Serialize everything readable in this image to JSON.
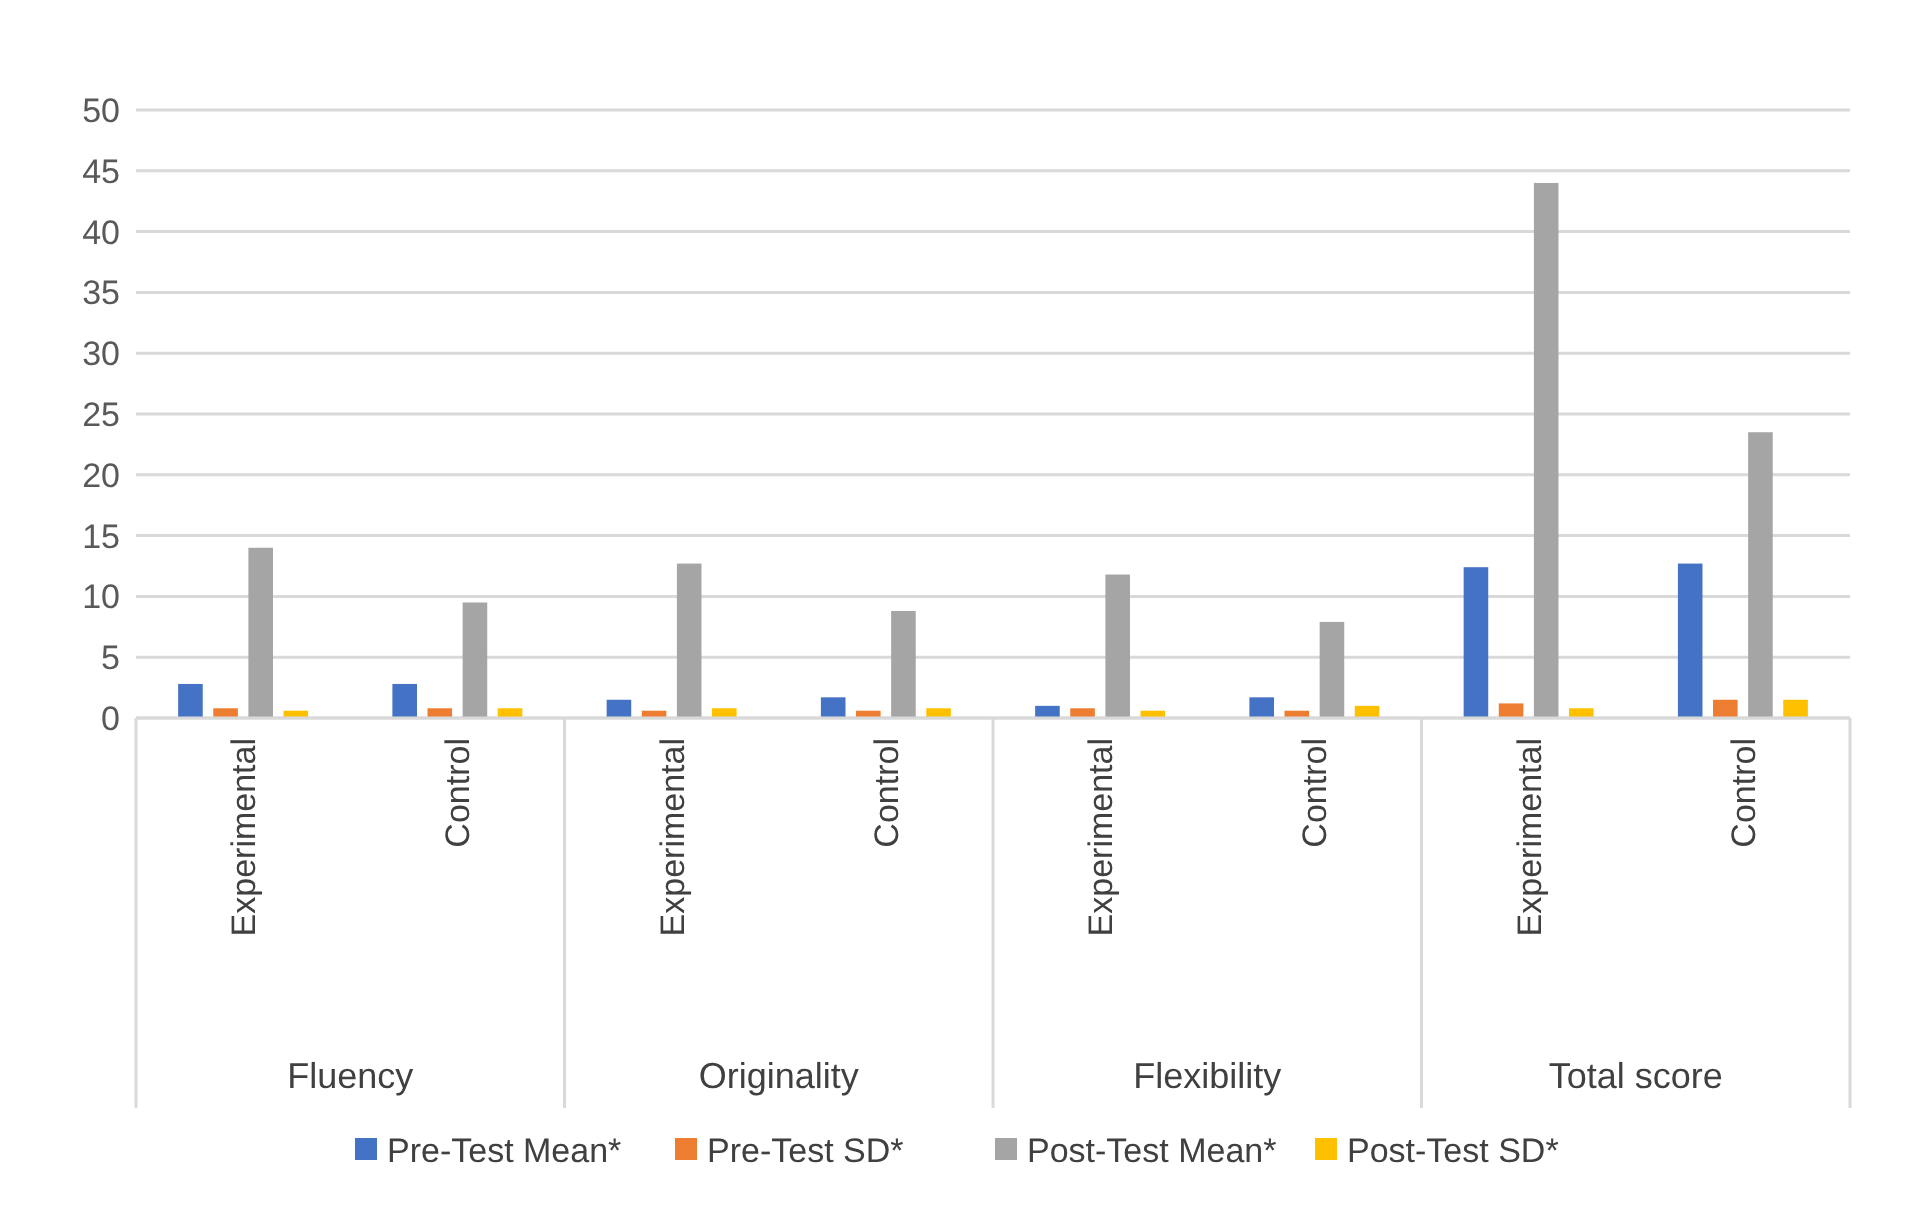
{
  "chart_data": {
    "type": "bar",
    "categories": [
      "Experimental",
      "Control",
      "Experimental",
      "Control",
      "Experimental",
      "Control",
      "Experimental",
      "Control"
    ],
    "annotations": [
      "Fluency",
      "Originality",
      "Flexibility",
      "Total score"
    ],
    "series": [
      {
        "name": "Pre-Test Mean*",
        "color": "#4472c4",
        "values": [
          2.8,
          2.8,
          1.5,
          1.7,
          1.0,
          1.7,
          12.4,
          12.7
        ]
      },
      {
        "name": "Pre-Test SD*",
        "color": "#ed7d31",
        "values": [
          0.8,
          0.8,
          0.6,
          0.6,
          0.8,
          0.6,
          1.2,
          1.5
        ]
      },
      {
        "name": "Post-Test Mean*",
        "color": "#a5a5a5",
        "values": [
          14,
          9.5,
          12.7,
          8.8,
          11.8,
          7.9,
          44,
          23.5
        ]
      },
      {
        "name": "Post-Test SD*",
        "color": "#ffc000",
        "values": [
          0.6,
          0.8,
          0.8,
          0.8,
          0.6,
          1.0,
          0.8,
          1.5
        ]
      }
    ],
    "ylim": [
      0,
      50
    ],
    "yticks": [
      0,
      5,
      10,
      15,
      20,
      25,
      30,
      35,
      40,
      45,
      50
    ],
    "grid": "y",
    "legend": "bottom"
  }
}
